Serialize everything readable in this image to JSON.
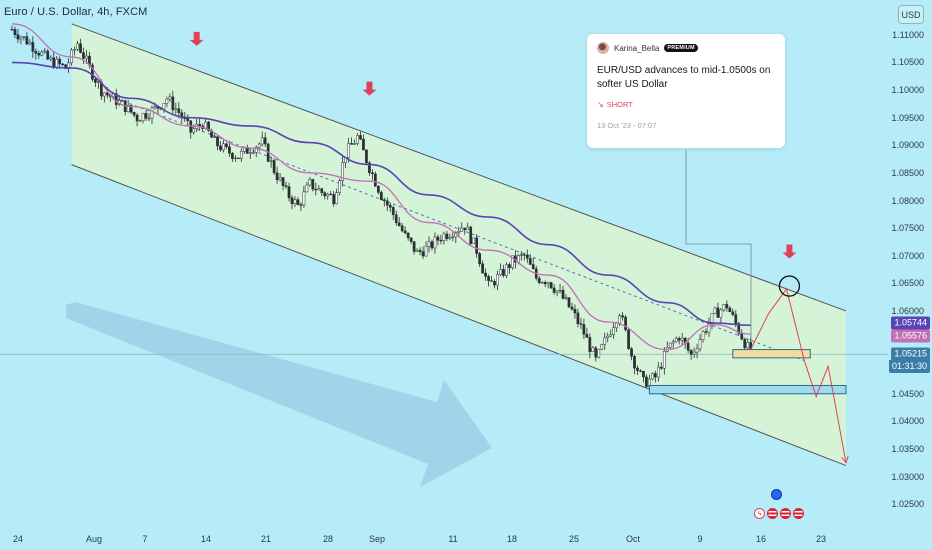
{
  "symbol": {
    "title": "Euro / U.S. Dollar, 4h, FXCM"
  },
  "currency_button": "USD",
  "news_card": {
    "author": "Karina_Bella",
    "badge": "PREMIUM",
    "headline": "EUR/USD advances to mid-1.0500s on softer US Dollar",
    "signal": "SHORT",
    "date": "13 Oct '23 - 07:07"
  },
  "price_tags": {
    "sma_long": "1.05744",
    "sma_short": "1.05576",
    "last_price": "1.05215",
    "countdown": "01:31:30"
  },
  "colors": {
    "background": "#b5ecf7",
    "channel_fill": "#dbf5d0",
    "candle": "#2a2f33",
    "sma_long": "#5b43b5",
    "sma_short": "#c26fb8",
    "arrow_red": "#e0415a",
    "support_box": "#f4dd9c",
    "support_box_2": "#9fdcef",
    "trend_dotted": "#4a79b8"
  },
  "chart_data": {
    "type": "candlestick",
    "timeframe": "4h",
    "x_tick_labels": [
      "24",
      "Aug",
      "7",
      "14",
      "21",
      "28",
      "Sep",
      "11",
      "18",
      "25",
      "Oct",
      "9",
      "16",
      "23"
    ],
    "y_tick_labels": [
      "1.11000",
      "1.10500",
      "1.10000",
      "1.09500",
      "1.09000",
      "1.08500",
      "1.08000",
      "1.07500",
      "1.07000",
      "1.06500",
      "1.06000",
      "1.05500",
      "1.05000",
      "1.04500",
      "1.04000",
      "1.03500",
      "1.03000",
      "1.02500"
    ],
    "ylim": [
      1.0225,
      1.1145
    ],
    "close_path": [
      [
        0,
        1.111
      ],
      [
        6,
        1.1085
      ],
      [
        12,
        1.1055
      ],
      [
        18,
        1.104
      ],
      [
        22,
        1.1085
      ],
      [
        26,
        1.104
      ],
      [
        30,
        1.1
      ],
      [
        34,
        1.0985
      ],
      [
        38,
        1.097
      ],
      [
        42,
        1.095
      ],
      [
        48,
        1.0965
      ],
      [
        52,
        1.0985
      ],
      [
        56,
        1.096
      ],
      [
        60,
        1.0925
      ],
      [
        64,
        1.094
      ],
      [
        68,
        1.0905
      ],
      [
        72,
        1.089
      ],
      [
        76,
        1.088
      ],
      [
        80,
        1.0895
      ],
      [
        84,
        1.0905
      ],
      [
        88,
        1.0855
      ],
      [
        92,
        1.0815
      ],
      [
        96,
        1.079
      ],
      [
        100,
        1.083
      ],
      [
        104,
        1.0815
      ],
      [
        108,
        1.0805
      ],
      [
        112,
        1.0885
      ],
      [
        116,
        1.0915
      ],
      [
        120,
        1.086
      ],
      [
        124,
        1.081
      ],
      [
        128,
        1.0775
      ],
      [
        132,
        1.0735
      ],
      [
        136,
        1.0705
      ],
      [
        140,
        1.0715
      ],
      [
        144,
        1.0735
      ],
      [
        148,
        1.0745
      ],
      [
        152,
        1.0755
      ],
      [
        156,
        1.071
      ],
      [
        160,
        1.0645
      ],
      [
        164,
        1.0665
      ],
      [
        168,
        1.069
      ],
      [
        172,
        1.07
      ],
      [
        176,
        1.066
      ],
      [
        180,
        1.0655
      ],
      [
        184,
        1.063
      ],
      [
        188,
        1.06
      ],
      [
        192,
        1.056
      ],
      [
        196,
        1.051
      ],
      [
        200,
        1.0555
      ],
      [
        204,
        1.06
      ],
      [
        208,
        1.052
      ],
      [
        212,
        1.047
      ],
      [
        216,
        1.048
      ],
      [
        220,
        1.053
      ],
      [
        224,
        1.0555
      ],
      [
        228,
        1.052
      ],
      [
        232,
        1.056
      ],
      [
        236,
        1.0595
      ],
      [
        240,
        1.061
      ],
      [
        244,
        1.0565
      ],
      [
        248,
        1.0522
      ]
    ],
    "sma_long_path": [
      [
        0,
        1.105
      ],
      [
        20,
        1.104
      ],
      [
        40,
        1.0985
      ],
      [
        60,
        1.095
      ],
      [
        80,
        1.0935
      ],
      [
        100,
        1.0905
      ],
      [
        120,
        1.0865
      ],
      [
        140,
        1.081
      ],
      [
        160,
        1.077
      ],
      [
        180,
        1.072
      ],
      [
        200,
        1.0665
      ],
      [
        220,
        1.0615
      ],
      [
        236,
        1.0578
      ],
      [
        248,
        1.0574
      ]
    ],
    "sma_short_path": [
      [
        0,
        1.112
      ],
      [
        20,
        1.106
      ],
      [
        40,
        1.097
      ],
      [
        60,
        1.0935
      ],
      [
        80,
        1.0895
      ],
      [
        100,
        1.085
      ],
      [
        120,
        1.0835
      ],
      [
        140,
        1.076
      ],
      [
        160,
        1.071
      ],
      [
        180,
        1.0665
      ],
      [
        200,
        1.058
      ],
      [
        220,
        1.053
      ],
      [
        236,
        1.0575
      ],
      [
        248,
        1.0558
      ]
    ],
    "annotations": {
      "channel_upper": [
        [
          20,
          1.112
        ],
        [
          280,
          1.06
        ]
      ],
      "channel_lower": [
        [
          20,
          1.0865
        ],
        [
          280,
          1.032
        ]
      ],
      "support_zone": {
        "x": [
          242,
          268
        ],
        "y": [
          1.0515,
          1.053
        ]
      },
      "support_zone_2": {
        "x": [
          214,
          280
        ],
        "y": [
          1.045,
          1.0465
        ]
      },
      "projection": [
        [
          248,
          1.053
        ],
        [
          254,
          1.0595
        ],
        [
          260,
          1.064
        ],
        [
          266,
          1.051
        ],
        [
          270,
          1.0445
        ],
        [
          274,
          1.05
        ],
        [
          280,
          1.0325
        ]
      ],
      "projection_circle": [
        261,
        1.0645
      ],
      "sell_arrows": [
        [
          62,
          1.108
        ],
        [
          120,
          1.099
        ],
        [
          261,
          1.0695
        ]
      ]
    }
  }
}
